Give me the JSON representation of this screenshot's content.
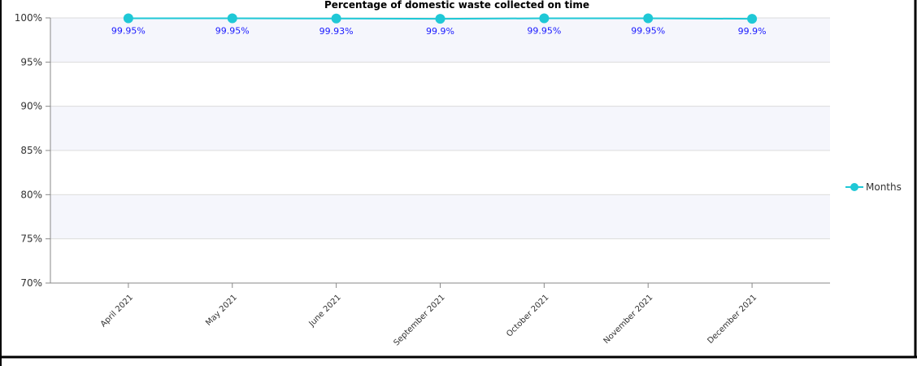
{
  "colors": {
    "series": "#1fc8d6",
    "data_label": "#1a1aff",
    "band": "#f5f6fc",
    "grid": "#dcdcdc",
    "axis": "#888888",
    "frame": "#000000"
  },
  "chart_data": {
    "type": "line",
    "title": "Percentage of domestic waste collected on time",
    "categories": [
      "April 2021",
      "May 2021",
      "June 2021",
      "September 2021",
      "October 2021",
      "November 2021",
      "December 2021"
    ],
    "series": [
      {
        "name": "Months",
        "values": [
          99.95,
          99.95,
          99.93,
          99.9,
          99.95,
          99.95,
          99.9
        ],
        "labels": [
          "99.95%",
          "99.95%",
          "99.93%",
          "99.9%",
          "99.95%",
          "99.95%",
          "99.9%"
        ]
      }
    ],
    "ylim": [
      70,
      100
    ],
    "yticks": [
      100,
      95,
      90,
      85,
      80,
      75,
      70
    ],
    "ytick_labels": [
      "100%",
      "95%",
      "90%",
      "85%",
      "80%",
      "75%",
      "70%"
    ],
    "grid": true,
    "legend_position": "right"
  }
}
